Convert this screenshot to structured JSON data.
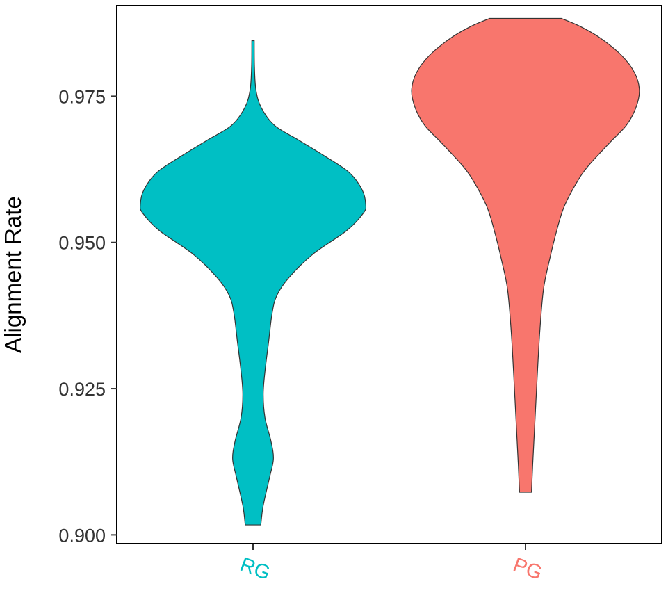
{
  "chart_data": {
    "type": "violin",
    "ylabel": "Alignment Rate",
    "xlabel": "",
    "ylim": [
      0.8985,
      0.9905
    ],
    "yticks": [
      0.9,
      0.925,
      0.95,
      0.975
    ],
    "ytick_labels": [
      "0.900",
      "0.925",
      "0.950",
      "0.975"
    ],
    "grid": false,
    "legend": "none",
    "categories": [
      "RG",
      "PG"
    ],
    "series": [
      {
        "category": "RG",
        "color": "#00BFC4",
        "min": 0.9017,
        "max": 0.9845,
        "density": [
          [
            0.9017,
            0.065
          ],
          [
            0.905,
            0.085
          ],
          [
            0.91,
            0.14
          ],
          [
            0.913,
            0.17
          ],
          [
            0.916,
            0.15
          ],
          [
            0.92,
            0.1
          ],
          [
            0.924,
            0.085
          ],
          [
            0.928,
            0.1
          ],
          [
            0.933,
            0.13
          ],
          [
            0.938,
            0.16
          ],
          [
            0.941,
            0.2
          ],
          [
            0.944,
            0.3
          ],
          [
            0.948,
            0.5
          ],
          [
            0.952,
            0.78
          ],
          [
            0.955,
            0.92
          ],
          [
            0.9565,
            0.94
          ],
          [
            0.959,
            0.91
          ],
          [
            0.962,
            0.8
          ],
          [
            0.965,
            0.58
          ],
          [
            0.9675,
            0.38
          ],
          [
            0.97,
            0.18
          ],
          [
            0.973,
            0.07
          ],
          [
            0.976,
            0.025
          ],
          [
            0.98,
            0.012
          ],
          [
            0.9845,
            0.01
          ]
        ]
      },
      {
        "category": "PG",
        "color": "#F8766D",
        "min": 0.9073,
        "max": 0.9883,
        "density": [
          [
            0.9073,
            0.05
          ],
          [
            0.912,
            0.06
          ],
          [
            0.92,
            0.08
          ],
          [
            0.928,
            0.1
          ],
          [
            0.935,
            0.12
          ],
          [
            0.942,
            0.15
          ],
          [
            0.947,
            0.2
          ],
          [
            0.952,
            0.26
          ],
          [
            0.956,
            0.32
          ],
          [
            0.96,
            0.42
          ],
          [
            0.963,
            0.52
          ],
          [
            0.967,
            0.7
          ],
          [
            0.97,
            0.84
          ],
          [
            0.973,
            0.92
          ],
          [
            0.976,
            0.95
          ],
          [
            0.979,
            0.91
          ],
          [
            0.982,
            0.8
          ],
          [
            0.985,
            0.62
          ],
          [
            0.987,
            0.45
          ],
          [
            0.9883,
            0.3
          ]
        ]
      }
    ]
  }
}
